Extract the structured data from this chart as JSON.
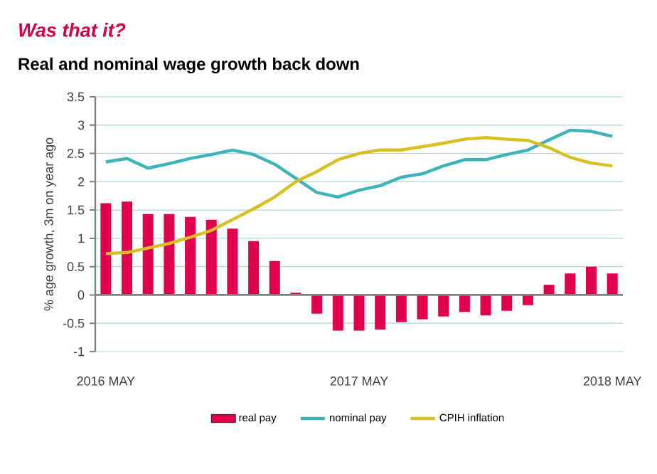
{
  "chart_data": {
    "type": "bar",
    "title": "Was that it?",
    "subtitle": "Real and nominal wage growth back down",
    "ylabel": "% age growth, 3m on year ago",
    "categories": [
      "2016 MAY",
      null,
      null,
      null,
      null,
      null,
      null,
      null,
      null,
      null,
      null,
      null,
      "2017 MAY",
      null,
      null,
      null,
      null,
      null,
      null,
      null,
      null,
      null,
      null,
      null,
      "2018 MAY"
    ],
    "series": [
      {
        "name": "real pay",
        "color": "#e0004d",
        "values": [
          1.62,
          1.65,
          1.43,
          1.43,
          1.38,
          1.33,
          1.17,
          0.95,
          0.6,
          0.04,
          -0.33,
          -0.63,
          -0.63,
          -0.61,
          -0.48,
          -0.43,
          -0.38,
          -0.3,
          -0.36,
          -0.28,
          -0.18,
          0.18,
          0.38,
          0.5,
          0.38
        ]
      },
      {
        "name": "nominal pay",
        "type": "line",
        "color": "#3cb4b9",
        "values": [
          2.35,
          2.41,
          2.24,
          2.32,
          2.41,
          2.48,
          2.56,
          2.48,
          2.31,
          2.06,
          1.81,
          1.73,
          1.85,
          1.93,
          2.08,
          2.14,
          2.28,
          2.39,
          2.39,
          2.48,
          2.56,
          2.74,
          2.91,
          2.89,
          2.8
        ]
      },
      {
        "name": "CPIH inflation",
        "type": "line",
        "color": "#d9c022",
        "values": [
          0.73,
          0.75,
          0.83,
          0.91,
          1.02,
          1.14,
          1.33,
          1.52,
          1.73,
          2.0,
          2.18,
          2.39,
          2.5,
          2.56,
          2.56,
          2.62,
          2.68,
          2.75,
          2.78,
          2.75,
          2.73,
          2.6,
          2.43,
          2.33,
          2.28
        ]
      }
    ],
    "ylim": [
      -1,
      3.5
    ],
    "yticks": [
      -1,
      -0.5,
      0,
      0.5,
      1,
      1.5,
      2,
      2.5,
      3,
      3.5
    ],
    "grid": "y",
    "legend": "bottom"
  }
}
